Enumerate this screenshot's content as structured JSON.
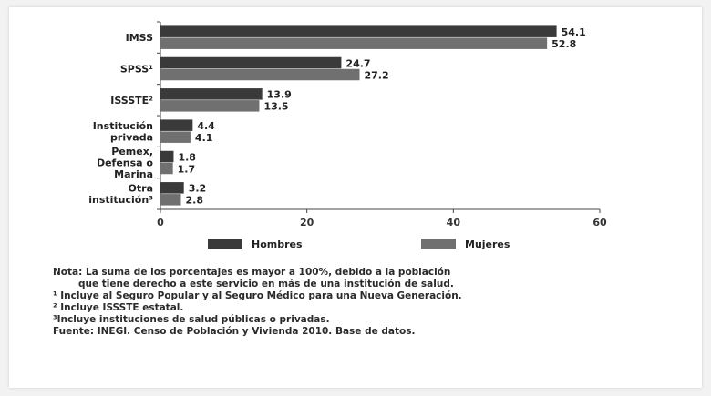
{
  "chart_data": {
    "type": "bar",
    "orientation": "horizontal",
    "categories": [
      [
        "IMSS"
      ],
      [
        "SPSS¹"
      ],
      [
        "ISSSTE²"
      ],
      [
        "Institución",
        "privada"
      ],
      [
        "Pemex,",
        "Defensa o",
        "Marina"
      ],
      [
        "Otra",
        "institución³"
      ]
    ],
    "series": [
      {
        "name": "Hombres",
        "color": "#3a3a3a",
        "values": [
          54.1,
          24.7,
          13.9,
          4.4,
          1.8,
          3.2
        ],
        "labels": [
          "54.1",
          "24.7",
          "13.9",
          "4.4",
          "1.8",
          "3.2"
        ]
      },
      {
        "name": "Mujeres",
        "color": "#707070",
        "values": [
          52.8,
          27.2,
          13.5,
          4.1,
          1.7,
          2.8
        ],
        "labels": [
          "52.8",
          "27.2",
          "13.5",
          "4.1",
          "1.7",
          "2.8"
        ]
      }
    ],
    "xlim": [
      0,
      60
    ],
    "xticks": [
      "0",
      "20",
      "40",
      "60"
    ],
    "grid": false,
    "legend": "bottom"
  },
  "notes": {
    "line1": "Nota: La suma de los porcentajes es mayor a 100%, debido a la población",
    "line2": "que tiene derecho a este servicio en más de una institución de salud.",
    "line3": "¹ Incluye al Seguro Popular y al Seguro Médico para una Nueva Generación.",
    "line4": "² Incluye ISSSTE estatal.",
    "line5": "³Incluye instituciones de salud públicas o privadas.",
    "line6": "Fuente: INEGI. Censo de Población y Vivienda 2010. Base de datos."
  }
}
